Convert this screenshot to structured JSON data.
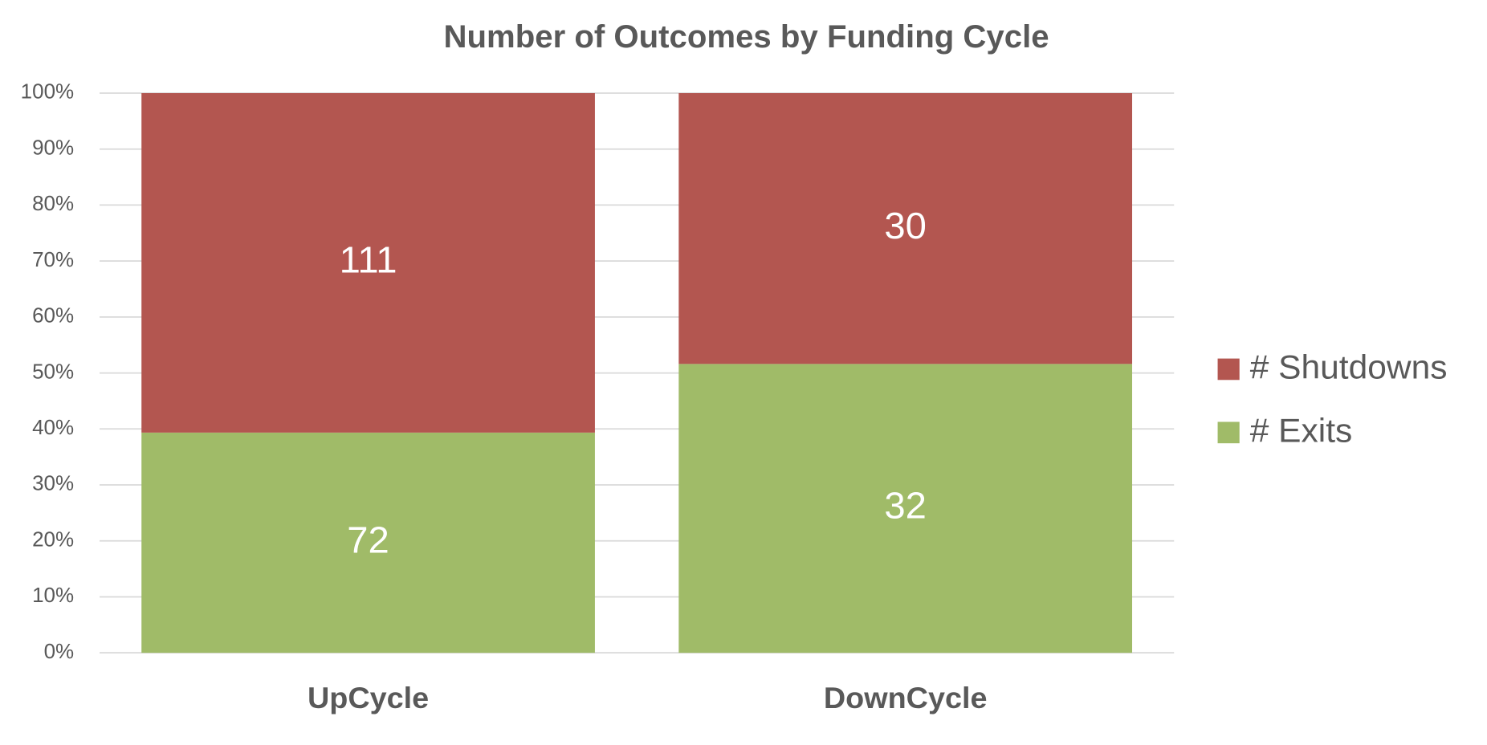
{
  "chart_data": {
    "type": "bar",
    "stack": "percent",
    "title": "Number of Outcomes by Funding Cycle",
    "categories": [
      "UpCycle",
      "DownCycle"
    ],
    "series": [
      {
        "name": "# Exits",
        "color": "#a0bb68",
        "values": [
          72,
          32
        ]
      },
      {
        "name": "# Shutdowns",
        "color": "#b35650",
        "values": [
          111,
          30
        ]
      }
    ],
    "ylim": [
      0,
      100
    ],
    "yticks": [
      {
        "value": 0,
        "label": "0%"
      },
      {
        "value": 10,
        "label": "10%"
      },
      {
        "value": 20,
        "label": "20%"
      },
      {
        "value": 30,
        "label": "30%"
      },
      {
        "value": 40,
        "label": "40%"
      },
      {
        "value": 50,
        "label": "50%"
      },
      {
        "value": 60,
        "label": "60%"
      },
      {
        "value": 70,
        "label": "70%"
      },
      {
        "value": 80,
        "label": "80%"
      },
      {
        "value": 90,
        "label": "90%"
      },
      {
        "value": 100,
        "label": "100%"
      }
    ],
    "grid": true,
    "legend": "right"
  }
}
